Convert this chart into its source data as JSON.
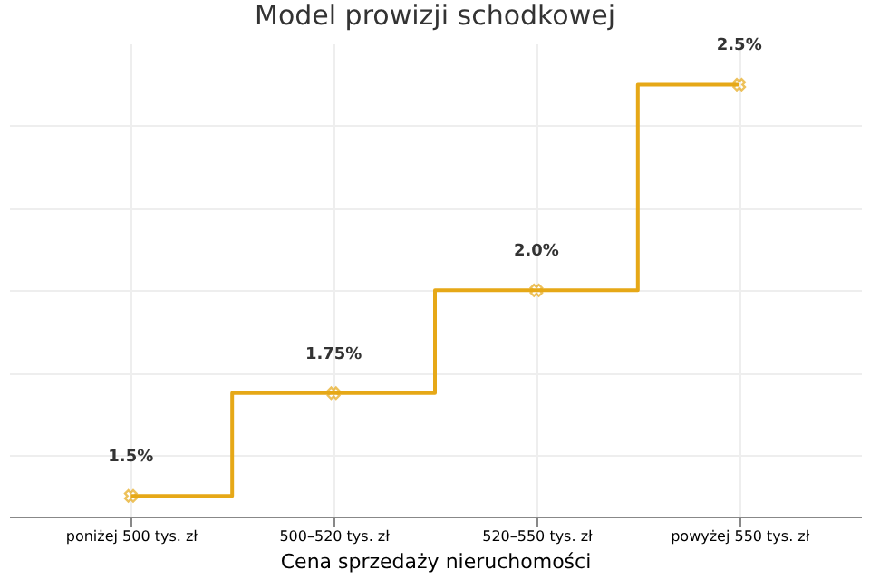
{
  "chart_data": {
    "type": "step",
    "title": "Model prowizji schodkowej",
    "xlabel": "Cena sprzedaży nieruchomości",
    "categories": [
      "poniżej 500 tys. zł",
      "500–520 tys. zł",
      "520–550 tys. zł",
      "powyżej 550 tys. zł"
    ],
    "series": [
      {
        "color": "#e6a817",
        "values": [
          1.5,
          1.75,
          2.0,
          2.5
        ],
        "value_labels": [
          "1.5%",
          "1.75%",
          "2.0%",
          "2.5%"
        ]
      }
    ],
    "ylim": [
      1.45,
      2.6
    ],
    "yticks": [
      {
        "value": 1.6,
        "label": null
      },
      {
        "value": 1.8,
        "label": null
      },
      {
        "value": 2.0,
        "label": null
      },
      {
        "value": 2.2,
        "label": null
      },
      {
        "value": 2.4,
        "label": null
      }
    ],
    "tick_labels": "x",
    "grid": true,
    "marker": "cross",
    "line_style": "solid"
  }
}
